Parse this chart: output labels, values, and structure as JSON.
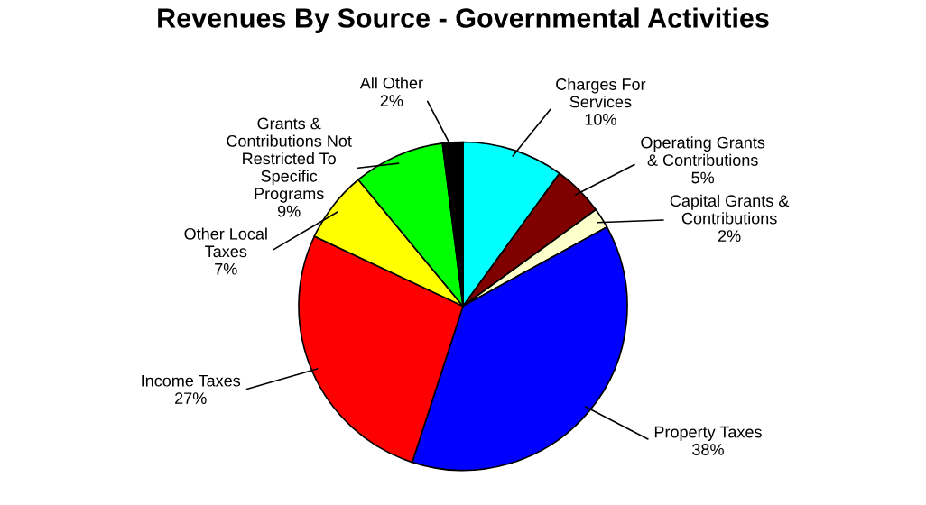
{
  "chart_data": {
    "type": "pie",
    "title": "Revenues By Source - Governmental Activities",
    "categories": [
      "Charges For\nServices",
      "Operating Grants\n& Contributions",
      "Capital Grants &\nContributions",
      "Property Taxes",
      "Income Taxes",
      "Other Local\nTaxes",
      "Grants &\nContributions Not\nRestricted To\nSpecific\nPrograms",
      "All Other"
    ],
    "values": [
      10,
      5,
      2,
      38,
      27,
      7,
      9,
      2
    ],
    "value_labels": [
      "10%",
      "5%",
      "2%",
      "38%",
      "27%",
      "7%",
      "9%",
      "2%"
    ],
    "colors": [
      "#00ffff",
      "#800000",
      "#ffffcc",
      "#0000ff",
      "#ff0000",
      "#ffff00",
      "#00ff00",
      "#000000"
    ],
    "legend": false
  }
}
